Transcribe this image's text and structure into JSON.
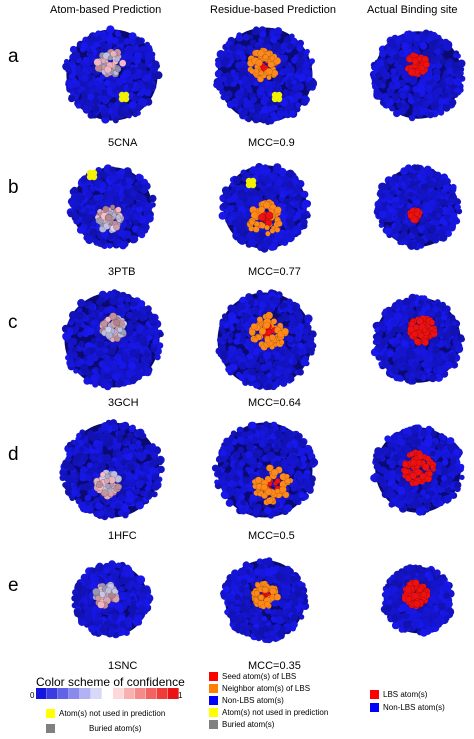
{
  "column_headers": [
    "Atom-based Prediction",
    "Residue-based Prediction",
    "Actual Binding site"
  ],
  "rows": [
    {
      "letter": "a",
      "pdb": "5CNA",
      "mcc": "MCC=0.9"
    },
    {
      "letter": "b",
      "pdb": "3PTB",
      "mcc": "MCC=0.77"
    },
    {
      "letter": "c",
      "pdb": "3GCH",
      "mcc": "MCC=0.64"
    },
    {
      "letter": "d",
      "pdb": "1HFC",
      "mcc": "MCC=0.5"
    },
    {
      "letter": "e",
      "pdb": "1SNC",
      "mcc": "MCC=0.35"
    }
  ],
  "legend": {
    "confidence_title": "Color scheme of confidence",
    "scale_min": "0",
    "scale_max": "1",
    "atom_items": [
      {
        "label": "Atom(s) not used in prediction",
        "color": "#ffff00"
      },
      {
        "label": "Buried atom(s)",
        "color": "#808080"
      }
    ],
    "residue_items": [
      {
        "label": "Seed atom(s) of LBS",
        "color": "#ff0000"
      },
      {
        "label": "Neighbor atom(s) of LBS",
        "color": "#ff8000"
      },
      {
        "label": "Non-LBS atom(s)",
        "color": "#0000ff"
      },
      {
        "label": "Atom(s) not used in prediction",
        "color": "#ffff00"
      },
      {
        "label": "Buried atom(s)",
        "color": "#808080"
      }
    ],
    "actual_items": [
      {
        "label": "LBS atom(s)",
        "color": "#ff0000"
      },
      {
        "label": "Non-LBS atom(s)",
        "color": "#0000ff"
      }
    ]
  },
  "colors": {
    "protein_blue": "#1a1adf",
    "protein_dark": "#0a0a70",
    "binding_red": "#ee1111",
    "neighbor_orange": "#ff8a1a",
    "unused_yellow": "#f2f200",
    "buried_gray": "#8a8a8a"
  }
}
